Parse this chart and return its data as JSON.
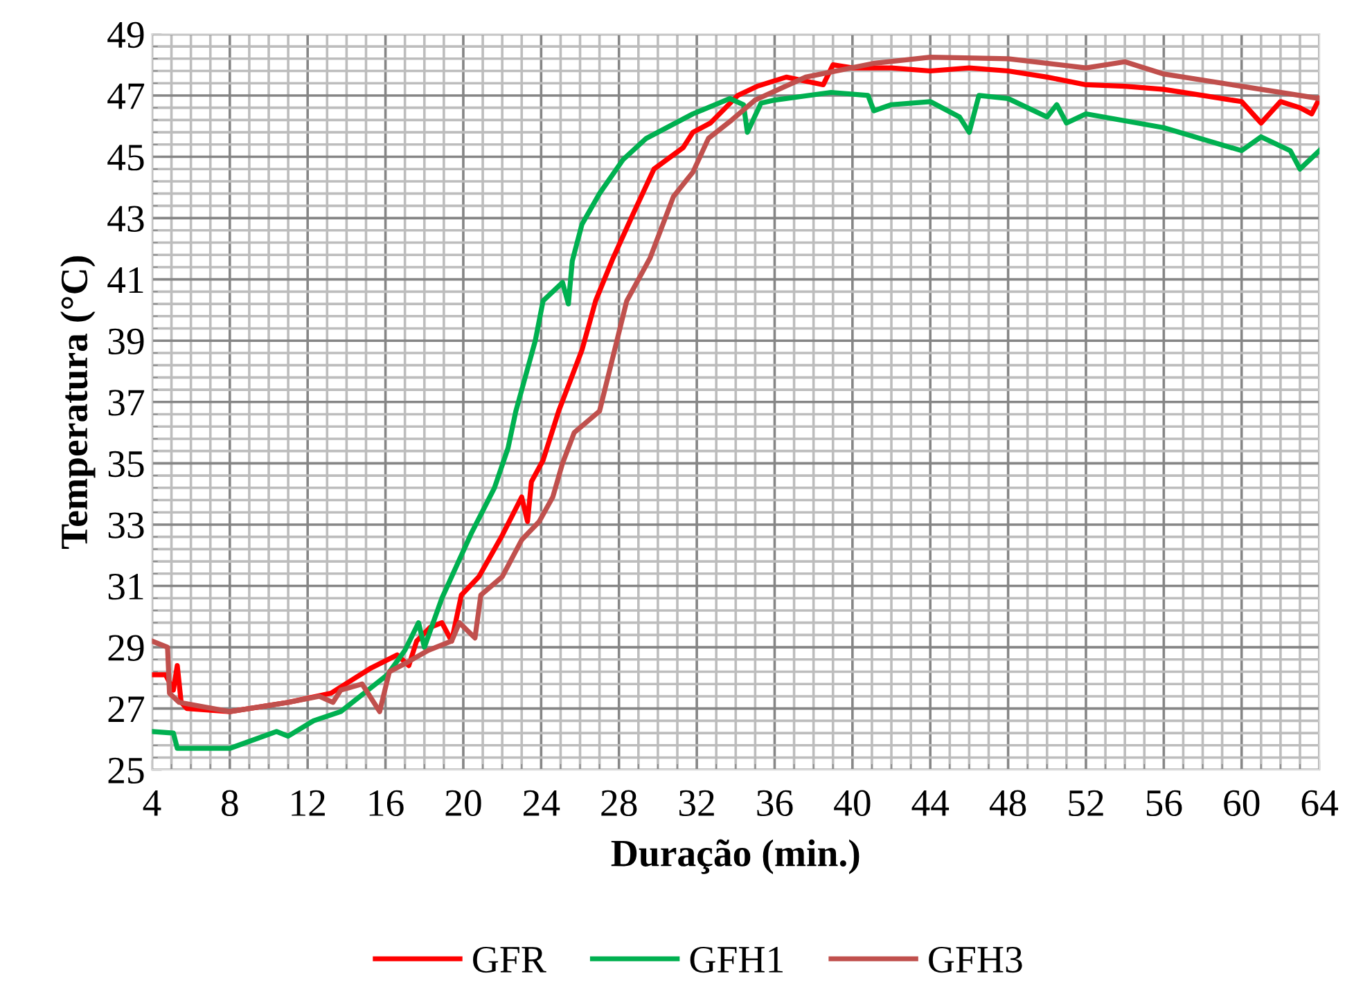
{
  "chart_data": {
    "type": "line",
    "xlabel": "Duração (min.)",
    "ylabel": "Temperatura (°C)",
    "xlim": [
      4,
      64
    ],
    "xticks": [
      4,
      8,
      12,
      16,
      20,
      24,
      28,
      32,
      36,
      40,
      44,
      48,
      52,
      56,
      60,
      64
    ],
    "ylim": [
      25,
      49
    ],
    "yticks": [
      25,
      27,
      29,
      31,
      33,
      35,
      37,
      39,
      41,
      43,
      45,
      47,
      49
    ],
    "grid": true,
    "legend": "bottom",
    "marker": "none",
    "line_style": "solid",
    "series": [
      {
        "name": "GFR",
        "color": "#ff0000",
        "x": [
          4,
          4.7,
          5.1,
          5.3,
          5.5,
          5.8,
          8,
          11,
          13.2,
          15.2,
          16.6,
          17.2,
          17.6,
          18.3,
          18.9,
          19.4,
          19.9,
          20.8,
          22,
          23,
          23.3,
          23.5,
          24.1,
          24.9,
          26.1,
          26.8,
          27.7,
          28.7,
          29.8,
          31.3,
          31.8,
          32.7,
          34.1,
          35.1,
          36.6,
          38.5,
          39,
          40,
          42,
          44,
          46,
          48,
          50,
          52,
          54,
          56,
          58,
          60,
          61,
          62,
          63,
          63.6,
          64
        ],
        "values": [
          28.1,
          28.1,
          27.6,
          28.4,
          27.2,
          27.0,
          26.9,
          27.2,
          27.5,
          28.3,
          28.75,
          28.4,
          29.2,
          29.65,
          29.8,
          29.2,
          30.7,
          31.3,
          32.65,
          33.9,
          33.1,
          34.4,
          35.1,
          36.7,
          38.7,
          40.3,
          41.7,
          43.1,
          44.6,
          45.3,
          45.8,
          46.1,
          47.0,
          47.3,
          47.6,
          47.35,
          48.0,
          47.9,
          47.9,
          47.8,
          47.9,
          47.8,
          47.6,
          47.35,
          47.3,
          47.2,
          47.0,
          46.8,
          46.1,
          46.8,
          46.6,
          46.4,
          46.9
        ]
      },
      {
        "name": "GFH1",
        "color": "#00b050",
        "x": [
          4,
          5.1,
          5.3,
          8,
          10.4,
          11,
          12.3,
          13.7,
          14.9,
          16.1,
          17,
          17.7,
          18,
          18.9,
          20.4,
          21.6,
          22.3,
          22.7,
          23.7,
          24.1,
          25.1,
          25.4,
          25.6,
          26.1,
          27,
          28.2,
          29.4,
          31.8,
          33.7,
          34.4,
          34.6,
          35.3,
          36,
          38.9,
          40.8,
          41.1,
          42,
          44,
          45.5,
          46,
          46.5,
          48,
          50,
          50.5,
          51,
          52,
          56,
          60,
          61,
          62.5,
          63,
          64
        ],
        "values": [
          26.25,
          26.2,
          25.7,
          25.7,
          26.25,
          26.1,
          26.6,
          26.9,
          27.5,
          28.1,
          28.9,
          29.8,
          29.0,
          30.6,
          32.7,
          34.2,
          35.5,
          36.7,
          39.0,
          40.3,
          40.9,
          40.2,
          41.6,
          42.8,
          43.8,
          44.9,
          45.6,
          46.4,
          46.9,
          46.7,
          45.8,
          46.75,
          46.85,
          47.1,
          47.0,
          46.5,
          46.7,
          46.8,
          46.3,
          45.8,
          47.0,
          46.9,
          46.3,
          46.7,
          46.1,
          46.4,
          45.95,
          45.2,
          45.65,
          45.2,
          44.6,
          45.2
        ]
      },
      {
        "name": "GFH3",
        "color": "#c0504d",
        "x": [
          4,
          4.8,
          4.9,
          5.4,
          8,
          11,
          12.6,
          13.3,
          13.7,
          14.8,
          15.7,
          16.2,
          17.1,
          18.2,
          19.4,
          19.8,
          20.6,
          20.9,
          22,
          23,
          23.9,
          24.6,
          25.1,
          25.7,
          27,
          28.4,
          29.6,
          30.8,
          31.8,
          32.6,
          33.8,
          35,
          37.6,
          41.1,
          44,
          48,
          52,
          54,
          56,
          60,
          64
        ],
        "values": [
          29.2,
          29.0,
          27.5,
          27.2,
          26.9,
          27.2,
          27.4,
          27.2,
          27.6,
          27.8,
          26.9,
          28.2,
          28.5,
          28.9,
          29.2,
          29.8,
          29.3,
          30.7,
          31.3,
          32.5,
          33.1,
          33.9,
          35.0,
          36.0,
          36.7,
          40.3,
          41.7,
          43.7,
          44.5,
          45.6,
          46.2,
          46.85,
          47.6,
          48.05,
          48.25,
          48.2,
          47.9,
          48.1,
          47.7,
          47.3,
          46.9
        ]
      }
    ]
  }
}
